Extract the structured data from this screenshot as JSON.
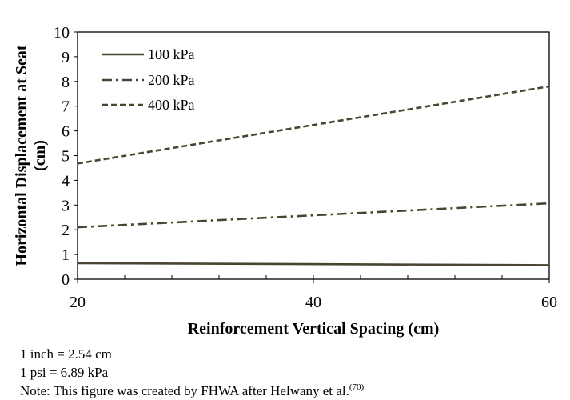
{
  "chart_data": {
    "type": "line",
    "xlabel": "Reinforcement Vertical Spacing (cm)",
    "ylabel": "Horizontal Displacement at Seat (cm)",
    "ylabel_lines": [
      "Horizontal Displacement at Seat",
      "(cm)"
    ],
    "xlim": [
      20,
      60
    ],
    "ylim": [
      0,
      10
    ],
    "x_ticks": [
      20,
      40,
      60
    ],
    "x_minor_step": 4,
    "y_ticks": [
      0,
      1,
      2,
      3,
      4,
      5,
      6,
      7,
      8,
      9,
      10
    ],
    "grid": false,
    "legend_position": "top-left",
    "series": [
      {
        "name": "100 kPa",
        "dash": "solid",
        "color": "#4a4530",
        "x": [
          20,
          60
        ],
        "y": [
          0.65,
          0.57
        ]
      },
      {
        "name": "200 kPa",
        "dash": "dashdot",
        "color": "#4a4530",
        "x": [
          20,
          60
        ],
        "y": [
          2.1,
          3.07
        ]
      },
      {
        "name": "400 kPa",
        "dash": "dashed",
        "color": "#4a4530",
        "x": [
          20,
          60
        ],
        "y": [
          4.68,
          7.8
        ]
      }
    ]
  },
  "notes": {
    "line1": "1 inch = 2.54 cm",
    "line2": "1 psi = 6.89 kPa",
    "line3": "Note: This figure was created by FHWA after Helwany et al.",
    "line3_ref": "(70)"
  }
}
